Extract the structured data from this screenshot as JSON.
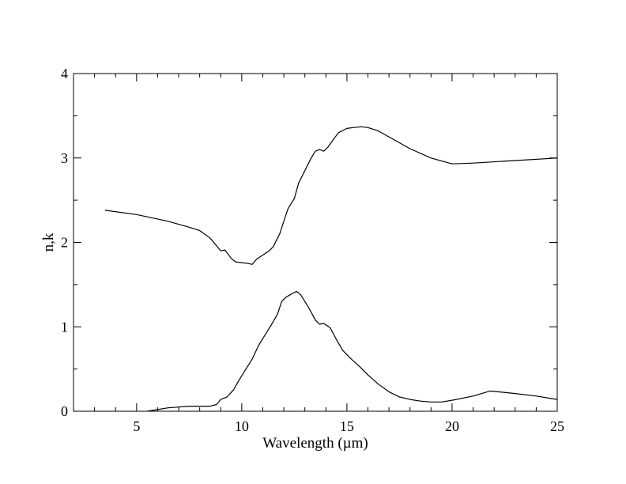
{
  "chart_data": {
    "type": "line",
    "title": "",
    "xlabel": "Wavelength (µm)",
    "ylabel": "n,k",
    "xlim": [
      2,
      25
    ],
    "ylim": [
      0,
      4
    ],
    "x_major_ticks": [
      5,
      10,
      15,
      20,
      25
    ],
    "x_minor_ticks": [
      3,
      4,
      6,
      7,
      8,
      9,
      11,
      12,
      13,
      14,
      16,
      17,
      18,
      19,
      21,
      22,
      23,
      24
    ],
    "y_major_ticks": [
      0,
      1,
      2,
      3,
      4
    ],
    "y_minor_ticks": [
      0.5,
      1.5,
      2.5,
      3.5
    ],
    "x_tick_labels": [
      "5",
      "10",
      "15",
      "20",
      "25"
    ],
    "y_tick_labels": [
      "0",
      "1",
      "2",
      "3",
      "4"
    ],
    "grid": false,
    "legend": "none",
    "line_color": "#000000",
    "series": [
      {
        "points": [
          [
            3.5,
            2.38
          ],
          [
            5.0,
            2.33
          ],
          [
            6.5,
            2.25
          ],
          [
            7.5,
            2.18
          ],
          [
            8.0,
            2.14
          ],
          [
            8.5,
            2.05
          ],
          [
            8.8,
            1.96
          ],
          [
            9.0,
            1.9
          ],
          [
            9.2,
            1.91
          ],
          [
            9.5,
            1.81
          ],
          [
            9.7,
            1.77
          ],
          [
            10.0,
            1.76
          ],
          [
            10.3,
            1.75
          ],
          [
            10.5,
            1.74
          ],
          [
            10.7,
            1.8
          ],
          [
            11.0,
            1.85
          ],
          [
            11.3,
            1.9
          ],
          [
            11.5,
            1.95
          ],
          [
            11.8,
            2.1
          ],
          [
            12.0,
            2.25
          ],
          [
            12.2,
            2.4
          ],
          [
            12.5,
            2.52
          ],
          [
            12.7,
            2.7
          ],
          [
            13.0,
            2.85
          ],
          [
            13.3,
            3.0
          ],
          [
            13.5,
            3.08
          ],
          [
            13.7,
            3.1
          ],
          [
            13.9,
            3.08
          ],
          [
            14.1,
            3.13
          ],
          [
            14.3,
            3.2
          ],
          [
            14.6,
            3.3
          ],
          [
            15.0,
            3.35
          ],
          [
            15.3,
            3.36
          ],
          [
            15.7,
            3.37
          ],
          [
            16.0,
            3.36
          ],
          [
            16.5,
            3.32
          ],
          [
            17.0,
            3.25
          ],
          [
            18.0,
            3.11
          ],
          [
            19.0,
            3.0
          ],
          [
            20.0,
            2.93
          ],
          [
            21.0,
            2.94
          ],
          [
            23.0,
            2.97
          ],
          [
            25.0,
            3.0
          ]
        ]
      },
      {
        "points": [
          [
            5.5,
            0.0
          ],
          [
            6.0,
            0.02
          ],
          [
            6.5,
            0.04
          ],
          [
            7.0,
            0.05
          ],
          [
            7.5,
            0.06
          ],
          [
            8.0,
            0.06
          ],
          [
            8.5,
            0.06
          ],
          [
            8.8,
            0.08
          ],
          [
            9.0,
            0.14
          ],
          [
            9.3,
            0.17
          ],
          [
            9.6,
            0.25
          ],
          [
            9.9,
            0.38
          ],
          [
            10.2,
            0.5
          ],
          [
            10.5,
            0.62
          ],
          [
            10.8,
            0.78
          ],
          [
            11.1,
            0.9
          ],
          [
            11.4,
            1.02
          ],
          [
            11.7,
            1.15
          ],
          [
            11.9,
            1.3
          ],
          [
            12.1,
            1.35
          ],
          [
            12.3,
            1.38
          ],
          [
            12.6,
            1.42
          ],
          [
            12.8,
            1.38
          ],
          [
            13.0,
            1.3
          ],
          [
            13.2,
            1.22
          ],
          [
            13.5,
            1.08
          ],
          [
            13.7,
            1.03
          ],
          [
            13.9,
            1.04
          ],
          [
            14.2,
            0.99
          ],
          [
            14.5,
            0.85
          ],
          [
            14.8,
            0.72
          ],
          [
            15.2,
            0.62
          ],
          [
            15.6,
            0.53
          ],
          [
            16.0,
            0.43
          ],
          [
            16.5,
            0.32
          ],
          [
            17.0,
            0.23
          ],
          [
            17.5,
            0.17
          ],
          [
            18.0,
            0.14
          ],
          [
            18.5,
            0.12
          ],
          [
            19.0,
            0.11
          ],
          [
            19.5,
            0.11
          ],
          [
            20.0,
            0.13
          ],
          [
            21.0,
            0.18
          ],
          [
            21.8,
            0.24
          ],
          [
            23.0,
            0.21
          ],
          [
            24.0,
            0.18
          ],
          [
            25.0,
            0.14
          ]
        ]
      }
    ]
  }
}
